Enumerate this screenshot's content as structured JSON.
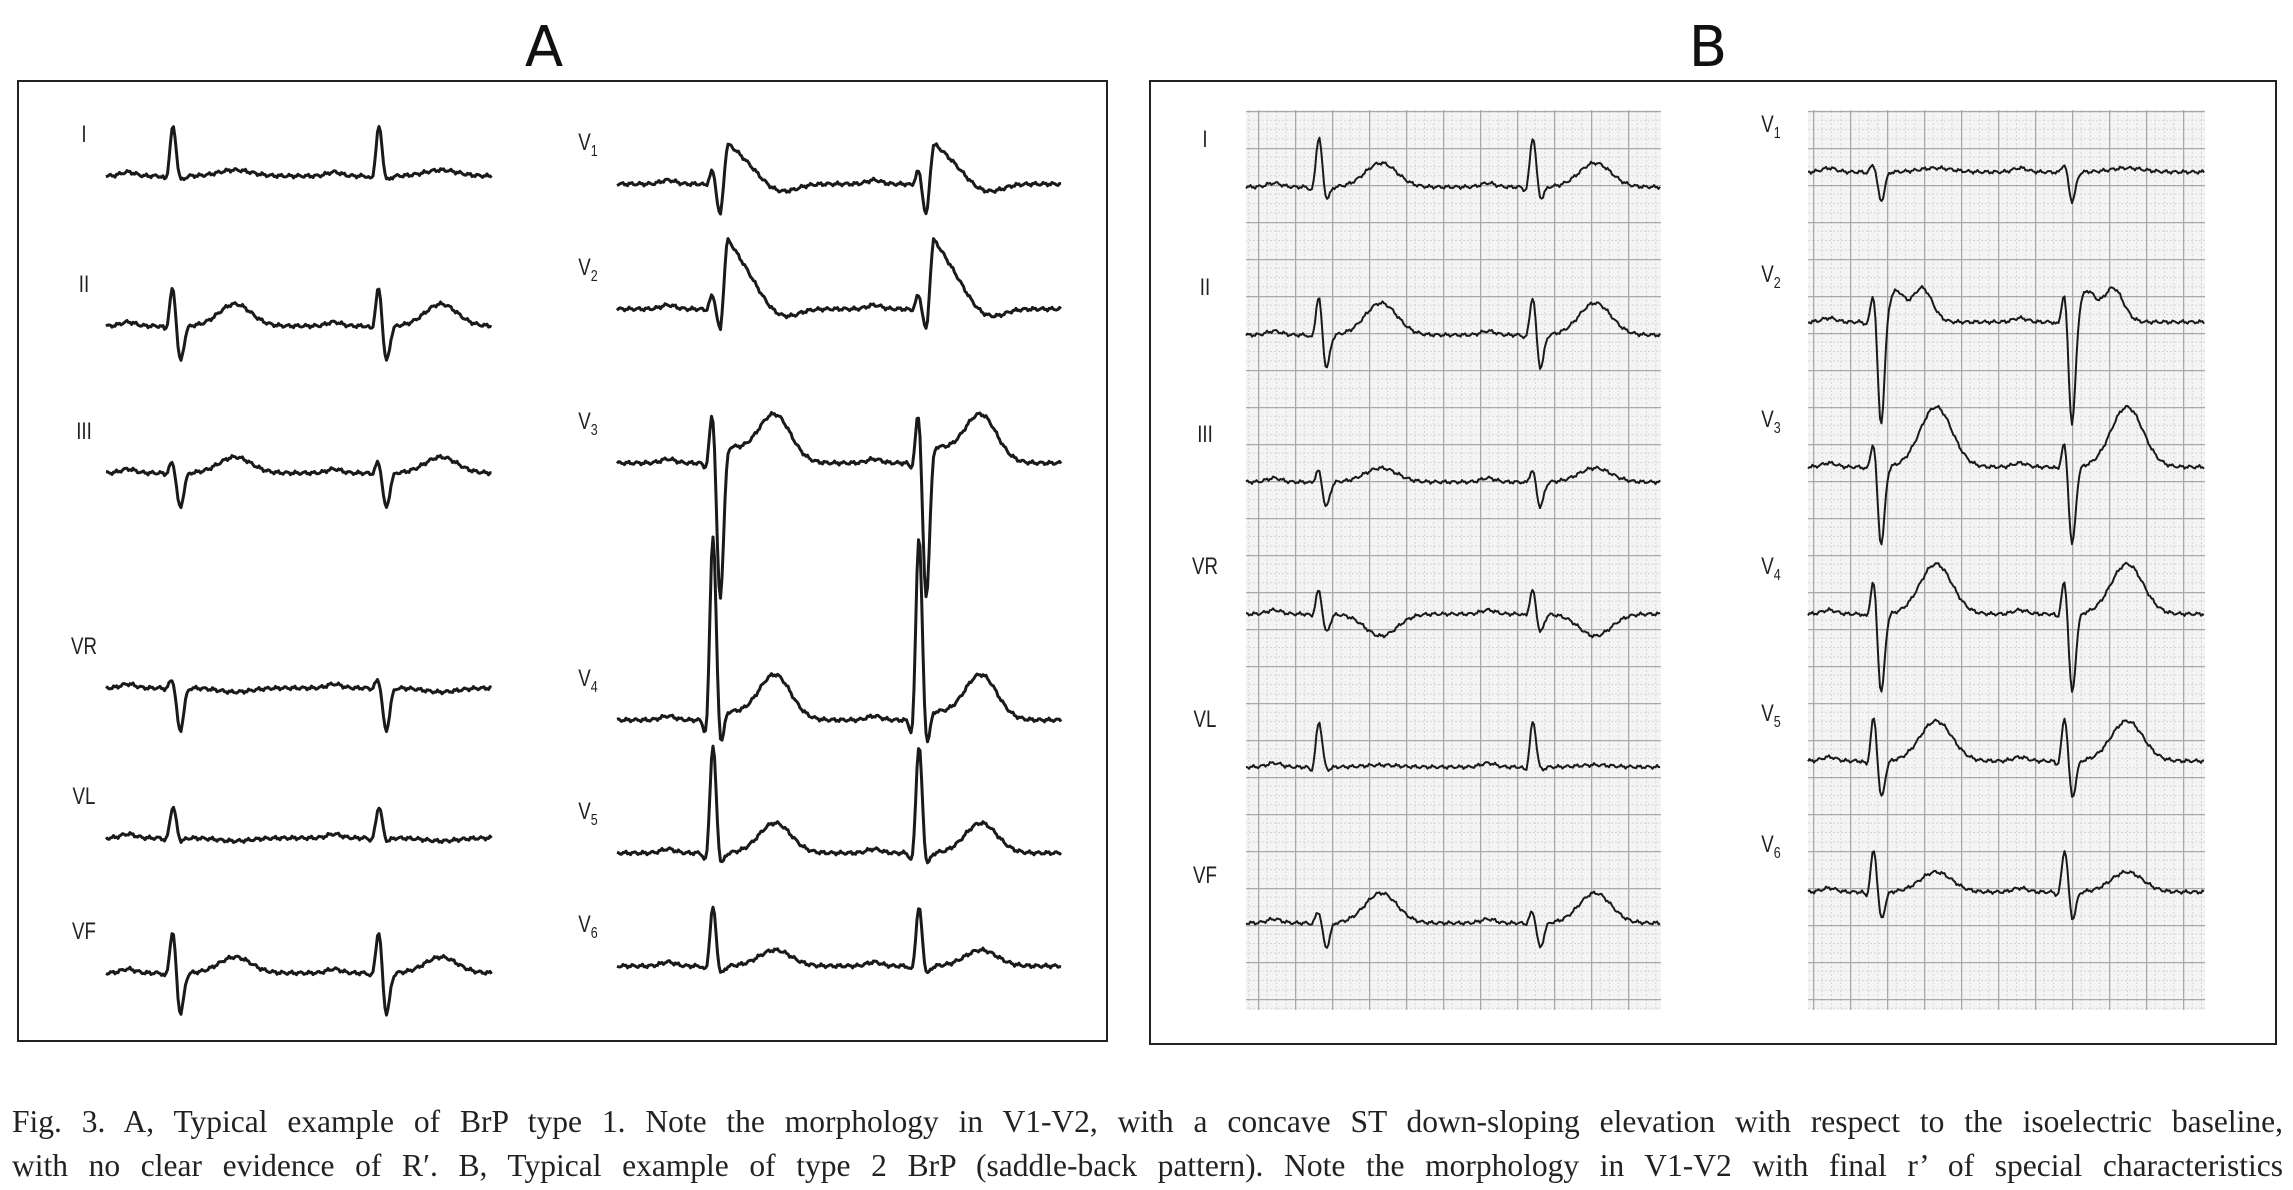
{
  "panels": [
    {
      "label": "A",
      "leads": [
        {
          "name": "I"
        },
        {
          "name": "II"
        },
        {
          "name": "III"
        },
        {
          "name": "VR"
        },
        {
          "name": "VL"
        },
        {
          "name": "VF"
        },
        {
          "name": "V",
          "sub": "1"
        },
        {
          "name": "V",
          "sub": "2"
        },
        {
          "name": "V",
          "sub": "3"
        },
        {
          "name": "V",
          "sub": "4"
        },
        {
          "name": "V",
          "sub": "5"
        },
        {
          "name": "V",
          "sub": "6"
        }
      ]
    },
    {
      "label": "B",
      "leads": [
        {
          "name": "I"
        },
        {
          "name": "II"
        },
        {
          "name": "III"
        },
        {
          "name": "VR"
        },
        {
          "name": "VL"
        },
        {
          "name": "VF"
        },
        {
          "name": "V",
          "sub": "1"
        },
        {
          "name": "V",
          "sub": "2"
        },
        {
          "name": "V",
          "sub": "3"
        },
        {
          "name": "V",
          "sub": "4"
        },
        {
          "name": "V",
          "sub": "5"
        },
        {
          "name": "V",
          "sub": "6"
        }
      ]
    }
  ],
  "caption": {
    "lines": [
      "Fig. 3. A, Typical example of BrP type 1. Note the morphology in V1-V2, with a concave ST down-sloping elevation with respect to the isoelectric baseline,",
      "with no clear evidence of R′. B, Typical example of type 2 BrP (saddle-back pattern). Note the morphology in V1-V2 with final r’ of special characteristics"
    ]
  }
}
